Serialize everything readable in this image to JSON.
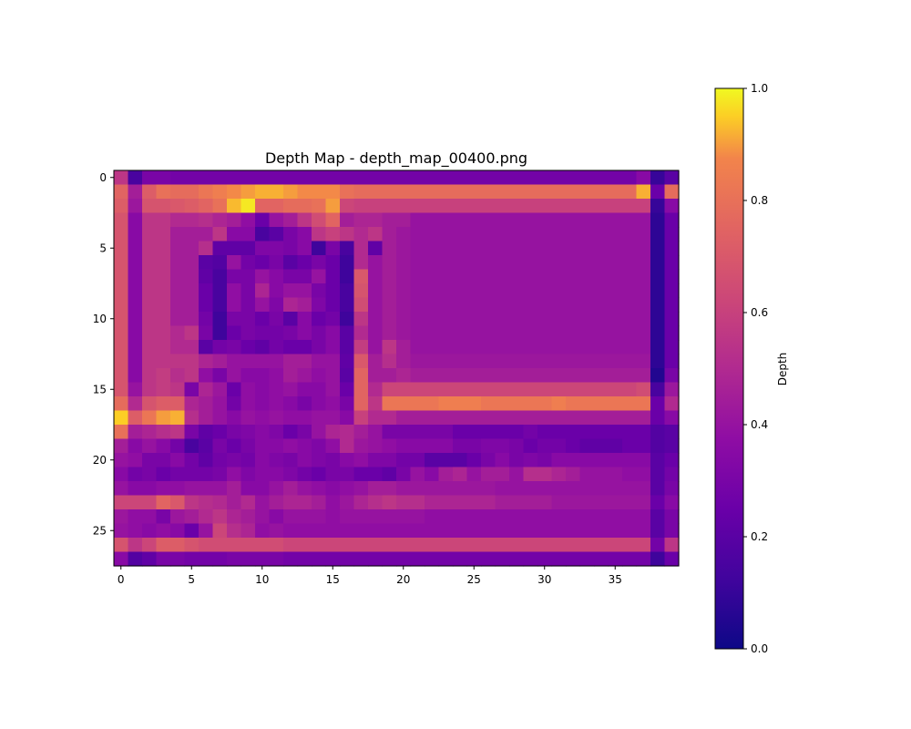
{
  "chart_data": {
    "type": "heatmap",
    "title": "Depth Map - depth_map_00400.png",
    "xlabel": "",
    "ylabel": "",
    "xlim": [
      -0.5,
      39.5
    ],
    "ylim": [
      27.5,
      -0.5
    ],
    "x_ticks": [
      "0",
      "5",
      "10",
      "15",
      "20",
      "25",
      "30",
      "35"
    ],
    "x_tick_values": [
      0,
      5,
      10,
      15,
      20,
      25,
      30,
      35
    ],
    "y_ticks": [
      "0",
      "5",
      "10",
      "15",
      "20",
      "25"
    ],
    "y_tick_values": [
      0,
      5,
      10,
      15,
      20,
      25
    ],
    "colormap": "plasma",
    "grid": false,
    "colorbar": {
      "label": "Depth",
      "range": [
        0,
        1
      ],
      "ticks": [
        "0.0",
        "0.2",
        "0.4",
        "0.6",
        "0.8",
        "1.0"
      ],
      "tick_values": [
        0.0,
        0.2,
        0.4,
        0.6,
        0.8,
        1.0
      ]
    },
    "rows": 28,
    "cols": 40,
    "values": [
      [
        0.55,
        0.15,
        0.3,
        0.3,
        0.28,
        0.28,
        0.28,
        0.28,
        0.28,
        0.28,
        0.28,
        0.28,
        0.28,
        0.28,
        0.28,
        0.28,
        0.28,
        0.28,
        0.28,
        0.28,
        0.28,
        0.28,
        0.28,
        0.28,
        0.28,
        0.28,
        0.28,
        0.28,
        0.28,
        0.28,
        0.28,
        0.28,
        0.28,
        0.28,
        0.28,
        0.28,
        0.28,
        0.35,
        0.1,
        0.2
      ],
      [
        0.75,
        0.45,
        0.72,
        0.8,
        0.78,
        0.78,
        0.82,
        0.85,
        0.88,
        0.9,
        0.92,
        0.92,
        0.9,
        0.88,
        0.88,
        0.88,
        0.8,
        0.78,
        0.78,
        0.78,
        0.78,
        0.78,
        0.78,
        0.78,
        0.78,
        0.78,
        0.78,
        0.78,
        0.78,
        0.78,
        0.78,
        0.78,
        0.78,
        0.78,
        0.78,
        0.78,
        0.78,
        0.92,
        0.25,
        0.78
      ],
      [
        0.72,
        0.42,
        0.68,
        0.68,
        0.7,
        0.72,
        0.75,
        0.8,
        0.93,
        0.98,
        0.75,
        0.75,
        0.78,
        0.78,
        0.8,
        0.9,
        0.62,
        0.6,
        0.6,
        0.6,
        0.6,
        0.6,
        0.6,
        0.6,
        0.6,
        0.6,
        0.6,
        0.6,
        0.6,
        0.6,
        0.6,
        0.6,
        0.6,
        0.6,
        0.6,
        0.6,
        0.6,
        0.6,
        0.1,
        0.35
      ],
      [
        0.68,
        0.35,
        0.55,
        0.55,
        0.5,
        0.5,
        0.52,
        0.48,
        0.45,
        0.38,
        0.25,
        0.4,
        0.45,
        0.55,
        0.65,
        0.75,
        0.45,
        0.48,
        0.48,
        0.45,
        0.45,
        0.4,
        0.4,
        0.4,
        0.4,
        0.4,
        0.4,
        0.4,
        0.4,
        0.4,
        0.4,
        0.4,
        0.4,
        0.4,
        0.4,
        0.4,
        0.4,
        0.4,
        0.08,
        0.25
      ],
      [
        0.68,
        0.35,
        0.55,
        0.55,
        0.45,
        0.45,
        0.45,
        0.55,
        0.35,
        0.35,
        0.15,
        0.2,
        0.3,
        0.35,
        0.55,
        0.6,
        0.55,
        0.5,
        0.55,
        0.45,
        0.42,
        0.4,
        0.4,
        0.4,
        0.4,
        0.4,
        0.4,
        0.4,
        0.4,
        0.4,
        0.4,
        0.4,
        0.4,
        0.4,
        0.4,
        0.4,
        0.4,
        0.4,
        0.08,
        0.25
      ],
      [
        0.68,
        0.35,
        0.55,
        0.55,
        0.45,
        0.45,
        0.52,
        0.22,
        0.22,
        0.22,
        0.32,
        0.32,
        0.3,
        0.35,
        0.12,
        0.3,
        0.15,
        0.5,
        0.22,
        0.45,
        0.42,
        0.4,
        0.4,
        0.4,
        0.4,
        0.4,
        0.4,
        0.4,
        0.4,
        0.4,
        0.4,
        0.4,
        0.4,
        0.4,
        0.4,
        0.4,
        0.4,
        0.4,
        0.08,
        0.25
      ],
      [
        0.68,
        0.35,
        0.55,
        0.55,
        0.45,
        0.45,
        0.2,
        0.18,
        0.4,
        0.28,
        0.25,
        0.3,
        0.2,
        0.25,
        0.3,
        0.25,
        0.12,
        0.5,
        0.4,
        0.45,
        0.42,
        0.4,
        0.4,
        0.4,
        0.4,
        0.4,
        0.4,
        0.4,
        0.4,
        0.4,
        0.4,
        0.4,
        0.4,
        0.4,
        0.4,
        0.4,
        0.4,
        0.4,
        0.08,
        0.25
      ],
      [
        0.68,
        0.35,
        0.55,
        0.55,
        0.45,
        0.45,
        0.22,
        0.15,
        0.3,
        0.3,
        0.4,
        0.35,
        0.3,
        0.3,
        0.4,
        0.25,
        0.12,
        0.7,
        0.4,
        0.45,
        0.42,
        0.4,
        0.4,
        0.4,
        0.4,
        0.4,
        0.4,
        0.4,
        0.4,
        0.4,
        0.4,
        0.4,
        0.4,
        0.4,
        0.4,
        0.4,
        0.4,
        0.4,
        0.08,
        0.25
      ],
      [
        0.68,
        0.35,
        0.55,
        0.55,
        0.45,
        0.45,
        0.25,
        0.15,
        0.38,
        0.3,
        0.48,
        0.35,
        0.4,
        0.4,
        0.3,
        0.25,
        0.15,
        0.68,
        0.4,
        0.45,
        0.42,
        0.4,
        0.4,
        0.4,
        0.4,
        0.4,
        0.4,
        0.4,
        0.4,
        0.4,
        0.4,
        0.4,
        0.4,
        0.4,
        0.4,
        0.4,
        0.4,
        0.4,
        0.08,
        0.25
      ],
      [
        0.68,
        0.35,
        0.55,
        0.55,
        0.45,
        0.45,
        0.25,
        0.15,
        0.38,
        0.3,
        0.4,
        0.32,
        0.48,
        0.45,
        0.32,
        0.25,
        0.15,
        0.65,
        0.4,
        0.45,
        0.42,
        0.4,
        0.4,
        0.4,
        0.4,
        0.4,
        0.4,
        0.4,
        0.4,
        0.4,
        0.4,
        0.4,
        0.4,
        0.4,
        0.4,
        0.4,
        0.4,
        0.4,
        0.08,
        0.25
      ],
      [
        0.68,
        0.35,
        0.55,
        0.55,
        0.45,
        0.45,
        0.28,
        0.12,
        0.3,
        0.3,
        0.25,
        0.3,
        0.2,
        0.35,
        0.25,
        0.28,
        0.12,
        0.55,
        0.4,
        0.45,
        0.42,
        0.4,
        0.4,
        0.4,
        0.4,
        0.4,
        0.4,
        0.4,
        0.4,
        0.4,
        0.4,
        0.4,
        0.4,
        0.4,
        0.4,
        0.4,
        0.4,
        0.4,
        0.08,
        0.25
      ],
      [
        0.68,
        0.35,
        0.55,
        0.55,
        0.5,
        0.55,
        0.3,
        0.12,
        0.25,
        0.3,
        0.28,
        0.28,
        0.3,
        0.35,
        0.3,
        0.35,
        0.2,
        0.5,
        0.4,
        0.45,
        0.42,
        0.4,
        0.4,
        0.4,
        0.4,
        0.4,
        0.4,
        0.4,
        0.4,
        0.4,
        0.4,
        0.4,
        0.4,
        0.4,
        0.4,
        0.4,
        0.4,
        0.4,
        0.08,
        0.25
      ],
      [
        0.68,
        0.35,
        0.55,
        0.55,
        0.5,
        0.5,
        0.2,
        0.28,
        0.3,
        0.25,
        0.22,
        0.28,
        0.25,
        0.25,
        0.3,
        0.35,
        0.2,
        0.58,
        0.4,
        0.55,
        0.45,
        0.4,
        0.4,
        0.4,
        0.4,
        0.4,
        0.4,
        0.4,
        0.4,
        0.4,
        0.4,
        0.4,
        0.4,
        0.4,
        0.4,
        0.4,
        0.4,
        0.4,
        0.08,
        0.25
      ],
      [
        0.68,
        0.35,
        0.55,
        0.55,
        0.55,
        0.55,
        0.48,
        0.45,
        0.4,
        0.4,
        0.4,
        0.4,
        0.45,
        0.45,
        0.4,
        0.4,
        0.22,
        0.7,
        0.45,
        0.52,
        0.45,
        0.42,
        0.42,
        0.42,
        0.42,
        0.42,
        0.42,
        0.42,
        0.42,
        0.42,
        0.42,
        0.42,
        0.42,
        0.42,
        0.42,
        0.42,
        0.42,
        0.42,
        0.08,
        0.25
      ],
      [
        0.68,
        0.35,
        0.55,
        0.58,
        0.52,
        0.55,
        0.38,
        0.3,
        0.4,
        0.35,
        0.35,
        0.38,
        0.45,
        0.42,
        0.38,
        0.4,
        0.2,
        0.75,
        0.45,
        0.45,
        0.48,
        0.45,
        0.45,
        0.45,
        0.45,
        0.45,
        0.45,
        0.45,
        0.45,
        0.45,
        0.45,
        0.45,
        0.45,
        0.45,
        0.45,
        0.45,
        0.45,
        0.45,
        0.05,
        0.3
      ],
      [
        0.68,
        0.4,
        0.55,
        0.58,
        0.55,
        0.3,
        0.48,
        0.42,
        0.25,
        0.38,
        0.35,
        0.38,
        0.4,
        0.35,
        0.35,
        0.4,
        0.25,
        0.75,
        0.5,
        0.62,
        0.62,
        0.62,
        0.62,
        0.62,
        0.62,
        0.62,
        0.62,
        0.62,
        0.62,
        0.62,
        0.62,
        0.62,
        0.62,
        0.62,
        0.62,
        0.62,
        0.62,
        0.65,
        0.15,
        0.42
      ],
      [
        0.78,
        0.5,
        0.68,
        0.72,
        0.72,
        0.48,
        0.45,
        0.4,
        0.28,
        0.38,
        0.35,
        0.38,
        0.35,
        0.3,
        0.35,
        0.38,
        0.3,
        0.75,
        0.55,
        0.82,
        0.82,
        0.82,
        0.82,
        0.85,
        0.85,
        0.85,
        0.82,
        0.82,
        0.82,
        0.82,
        0.82,
        0.85,
        0.82,
        0.82,
        0.82,
        0.82,
        0.82,
        0.82,
        0.25,
        0.5
      ],
      [
        0.95,
        0.72,
        0.82,
        0.9,
        0.92,
        0.52,
        0.45,
        0.4,
        0.35,
        0.4,
        0.38,
        0.4,
        0.38,
        0.38,
        0.4,
        0.4,
        0.35,
        0.6,
        0.5,
        0.5,
        0.45,
        0.45,
        0.45,
        0.45,
        0.45,
        0.45,
        0.45,
        0.45,
        0.45,
        0.45,
        0.45,
        0.45,
        0.45,
        0.45,
        0.45,
        0.45,
        0.45,
        0.45,
        0.25,
        0.35
      ],
      [
        0.8,
        0.45,
        0.48,
        0.52,
        0.55,
        0.3,
        0.22,
        0.25,
        0.3,
        0.32,
        0.35,
        0.32,
        0.25,
        0.3,
        0.4,
        0.48,
        0.5,
        0.45,
        0.4,
        0.3,
        0.3,
        0.3,
        0.3,
        0.3,
        0.25,
        0.25,
        0.25,
        0.25,
        0.25,
        0.28,
        0.25,
        0.25,
        0.25,
        0.25,
        0.25,
        0.25,
        0.25,
        0.25,
        0.18,
        0.2
      ],
      [
        0.45,
        0.35,
        0.4,
        0.35,
        0.28,
        0.15,
        0.2,
        0.3,
        0.25,
        0.3,
        0.35,
        0.35,
        0.38,
        0.35,
        0.32,
        0.38,
        0.5,
        0.42,
        0.4,
        0.38,
        0.35,
        0.35,
        0.35,
        0.35,
        0.3,
        0.3,
        0.32,
        0.32,
        0.3,
        0.25,
        0.28,
        0.28,
        0.25,
        0.22,
        0.22,
        0.22,
        0.25,
        0.25,
        0.18,
        0.2
      ],
      [
        0.4,
        0.38,
        0.3,
        0.3,
        0.35,
        0.28,
        0.22,
        0.28,
        0.3,
        0.28,
        0.35,
        0.32,
        0.3,
        0.35,
        0.32,
        0.3,
        0.35,
        0.38,
        0.32,
        0.32,
        0.28,
        0.28,
        0.2,
        0.2,
        0.2,
        0.25,
        0.3,
        0.35,
        0.3,
        0.32,
        0.3,
        0.35,
        0.35,
        0.35,
        0.35,
        0.35,
        0.35,
        0.35,
        0.2,
        0.25
      ],
      [
        0.35,
        0.28,
        0.3,
        0.25,
        0.28,
        0.28,
        0.28,
        0.3,
        0.38,
        0.32,
        0.35,
        0.35,
        0.32,
        0.28,
        0.25,
        0.3,
        0.3,
        0.25,
        0.25,
        0.22,
        0.3,
        0.4,
        0.35,
        0.45,
        0.48,
        0.4,
        0.45,
        0.45,
        0.4,
        0.52,
        0.52,
        0.48,
        0.45,
        0.4,
        0.4,
        0.4,
        0.38,
        0.38,
        0.2,
        0.28
      ],
      [
        0.4,
        0.35,
        0.35,
        0.38,
        0.38,
        0.4,
        0.4,
        0.4,
        0.45,
        0.35,
        0.35,
        0.4,
        0.45,
        0.4,
        0.38,
        0.35,
        0.38,
        0.4,
        0.45,
        0.45,
        0.42,
        0.42,
        0.42,
        0.42,
        0.42,
        0.42,
        0.42,
        0.4,
        0.4,
        0.4,
        0.4,
        0.4,
        0.4,
        0.4,
        0.4,
        0.4,
        0.4,
        0.4,
        0.2,
        0.3
      ],
      [
        0.62,
        0.62,
        0.62,
        0.75,
        0.7,
        0.55,
        0.52,
        0.5,
        0.45,
        0.5,
        0.4,
        0.45,
        0.48,
        0.48,
        0.45,
        0.38,
        0.42,
        0.48,
        0.52,
        0.55,
        0.52,
        0.52,
        0.48,
        0.48,
        0.48,
        0.48,
        0.48,
        0.45,
        0.45,
        0.45,
        0.45,
        0.42,
        0.42,
        0.42,
        0.42,
        0.42,
        0.42,
        0.42,
        0.25,
        0.35
      ],
      [
        0.42,
        0.38,
        0.38,
        0.3,
        0.42,
        0.45,
        0.5,
        0.55,
        0.48,
        0.45,
        0.4,
        0.35,
        0.4,
        0.4,
        0.4,
        0.38,
        0.4,
        0.4,
        0.4,
        0.4,
        0.4,
        0.4,
        0.38,
        0.38,
        0.38,
        0.38,
        0.38,
        0.38,
        0.38,
        0.38,
        0.38,
        0.38,
        0.38,
        0.38,
        0.38,
        0.38,
        0.38,
        0.38,
        0.2,
        0.3
      ],
      [
        0.4,
        0.38,
        0.35,
        0.38,
        0.35,
        0.25,
        0.4,
        0.62,
        0.52,
        0.48,
        0.38,
        0.4,
        0.38,
        0.38,
        0.38,
        0.38,
        0.38,
        0.38,
        0.38,
        0.38,
        0.38,
        0.38,
        0.38,
        0.38,
        0.38,
        0.38,
        0.38,
        0.38,
        0.38,
        0.38,
        0.38,
        0.38,
        0.38,
        0.38,
        0.38,
        0.38,
        0.38,
        0.38,
        0.2,
        0.3
      ],
      [
        0.68,
        0.55,
        0.62,
        0.72,
        0.72,
        0.68,
        0.65,
        0.65,
        0.65,
        0.65,
        0.65,
        0.65,
        0.62,
        0.62,
        0.62,
        0.62,
        0.62,
        0.62,
        0.62,
        0.62,
        0.62,
        0.62,
        0.62,
        0.62,
        0.62,
        0.62,
        0.62,
        0.62,
        0.62,
        0.62,
        0.62,
        0.62,
        0.62,
        0.62,
        0.62,
        0.62,
        0.62,
        0.62,
        0.28,
        0.55
      ],
      [
        0.35,
        0.18,
        0.22,
        0.3,
        0.3,
        0.28,
        0.28,
        0.28,
        0.3,
        0.3,
        0.3,
        0.3,
        0.28,
        0.28,
        0.28,
        0.28,
        0.28,
        0.28,
        0.28,
        0.28,
        0.28,
        0.28,
        0.28,
        0.28,
        0.28,
        0.28,
        0.28,
        0.28,
        0.28,
        0.28,
        0.28,
        0.28,
        0.28,
        0.28,
        0.28,
        0.28,
        0.28,
        0.28,
        0.12,
        0.25
      ]
    ]
  }
}
